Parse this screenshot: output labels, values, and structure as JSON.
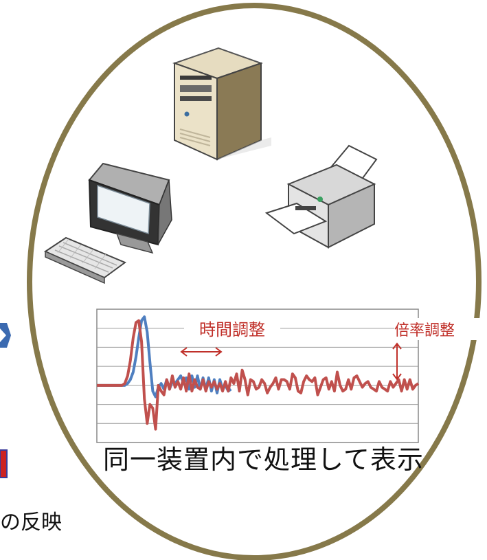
{
  "labels": {
    "time_adjust": "時間調整",
    "scale_adjust": "倍率調整",
    "caption": "同一装置内で処理して表示",
    "bottom_left": "の反映"
  },
  "icons": [
    "server-tower-icon",
    "desktop-computer-icon",
    "keyboard-icon",
    "printer-icon"
  ],
  "colors": {
    "ellipse": "#86794a",
    "series_blue": "#4f7fc0",
    "series_red": "#c0504d",
    "annotation": "#c0302a",
    "left_arrow": "#3b6ab0",
    "left_box": "#cc2222"
  },
  "chart_data": {
    "type": "line",
    "title": "",
    "xlabel": "",
    "ylabel": "",
    "grid": true,
    "legend": "none",
    "series": [
      {
        "color": "#4f7fc0",
        "values": [
          0,
          0,
          0,
          0,
          0,
          0,
          0,
          0,
          0,
          0,
          0,
          0.1,
          0.3,
          0.7,
          1.5,
          2.5,
          3.4,
          3.6,
          2.8,
          1.2,
          -0.3,
          -0.6,
          -0.1,
          0.1,
          -0.2,
          0.3,
          -0.2,
          0.2,
          0.1,
          0.3,
          0.5,
          0.1,
          0.4,
          -0.2,
          0.5,
          -0.1,
          0.5,
          -0.2,
          0.4,
          -0.2,
          0.4,
          -0.3,
          0.3,
          -0.4,
          0.3,
          -0.2,
          0,
          -0.3,
          -0.2
        ]
      },
      {
        "color": "#c0504d",
        "values": [
          0,
          0,
          0,
          0,
          0,
          0,
          0,
          0,
          0,
          0,
          0.1,
          0.5,
          1.3,
          2.5,
          3.3,
          3.4,
          2.3,
          -0.7,
          -2.0,
          -1.0,
          -1.2,
          -2.3,
          0,
          -0.3,
          -0.5,
          0.3,
          -0.2,
          0.5,
          -0.1,
          0.2,
          -0.2,
          0.4,
          -0.3,
          0.6,
          -0.3,
          0.3,
          -0.1,
          -0.2,
          0.3,
          -0.3,
          0.2,
          -0.1,
          0.2,
          -0.2,
          0.1,
          -0.3,
          0.2,
          -0.3,
          0.4,
          0.1,
          0.6,
          -0.3,
          0.8,
          0.3,
          -0.5,
          0.3,
          0.2,
          -0.2,
          -0.1,
          0.3,
          0.1,
          -0.4,
          -0.1,
          0.1,
          0.4,
          -0.2,
          0.3,
          0.3,
          0.2,
          -0.2,
          0.6,
          0.4,
          -0.3,
          -0.4,
          0.2,
          0.5,
          0.3,
          0.2,
          0.4,
          -0.5,
          -0.1,
          0.3,
          0.4,
          -0.2,
          0.2,
          -0.3,
          0.7,
          0,
          -0.3,
          -0.2,
          0.3,
          -0.2,
          0.4,
          0.5,
          0.2,
          -0.1,
          0.1,
          0.2,
          -0.1,
          -0.2,
          -0.3,
          0.2,
          -0.1,
          -0.2,
          -0.3,
          0.2,
          -0.1,
          0.1,
          0.3,
          -0.3,
          0.3,
          -0.2,
          0.3,
          -0.2,
          0,
          0.1
        ]
      }
    ]
  }
}
